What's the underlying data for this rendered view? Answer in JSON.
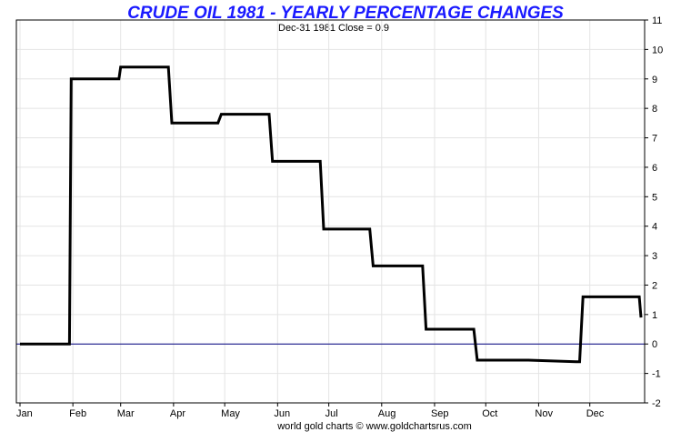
{
  "chart_data": {
    "type": "line",
    "title": "CRUDE OIL 1981 - YEARLY PERCENTAGE CHANGES",
    "subtitle": "Dec-31  1981   Close = 0.9",
    "footer": "world gold charts © www.goldchartsrus.com",
    "xlabel": "",
    "ylabel": "",
    "x_tick_labels": [
      "Jan",
      "Feb",
      "Mar",
      "Apr",
      "May",
      "Jun",
      "Jul",
      "Aug",
      "Sep",
      "Oct",
      "Nov",
      "Dec"
    ],
    "y_ticks": [
      -2,
      -1,
      0,
      1,
      2,
      3,
      4,
      5,
      6,
      7,
      8,
      9,
      10,
      11
    ],
    "ylim": [
      -2,
      11
    ],
    "y_axis_side": "right",
    "grid": true,
    "colors": {
      "title": "#1a1aff",
      "line": "#000000",
      "zero_line": "#000080",
      "grid": "#e4e4e4"
    },
    "series": [
      {
        "x": [
          "Jan 1",
          "Jan 30",
          "Jan 31",
          "Feb 28",
          "Mar 1",
          "Mar 29",
          "Mar 31",
          "Apr 27",
          "Apr 29",
          "May 27",
          "May 29",
          "Jun 26",
          "Jun 28",
          "Jul 25",
          "Jul 27",
          "Aug 25",
          "Aug 27",
          "Sep 24",
          "Sep 26",
          "Oct 24",
          "Oct 26",
          "Nov 23",
          "Nov 25",
          "Nov 27",
          "Dec 30",
          "Dec 31"
        ],
        "values": [
          0,
          0,
          9.0,
          9.0,
          9.4,
          9.4,
          7.5,
          7.5,
          7.8,
          7.8,
          6.2,
          6.2,
          3.9,
          3.9,
          2.65,
          2.65,
          0.5,
          0.5,
          -0.55,
          -0.55,
          -0.55,
          -0.6,
          -0.6,
          1.6,
          1.6,
          0.9
        ]
      }
    ]
  }
}
